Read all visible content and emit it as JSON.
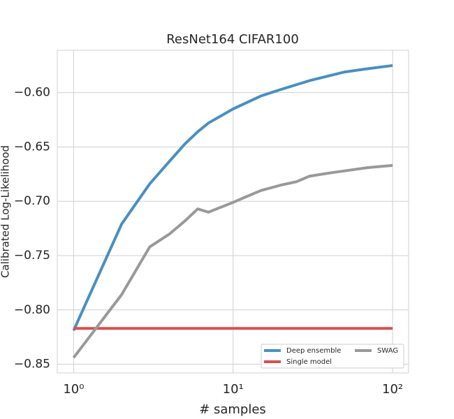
{
  "chart_data": {
    "type": "line",
    "title": "ResNet164 CIFAR100",
    "xlabel": "# samples",
    "ylabel": "Calibrated Log-Likelihood",
    "xscale": "log",
    "grid": true,
    "legend": "lower right",
    "xlim": [
      0.79,
      126
    ],
    "ylim": [
      -0.858,
      -0.561
    ],
    "xticks": [
      {
        "value": 1,
        "label": "10⁰"
      },
      {
        "value": 10,
        "label": "10¹"
      },
      {
        "value": 100,
        "label": "10²"
      }
    ],
    "yticks": [
      {
        "value": -0.85,
        "label": "−0.85"
      },
      {
        "value": -0.8,
        "label": "−0.80"
      },
      {
        "value": -0.75,
        "label": "−0.75"
      },
      {
        "value": -0.7,
        "label": "−0.70"
      },
      {
        "value": -0.65,
        "label": "−0.65"
      },
      {
        "value": -0.6,
        "label": "−0.60"
      }
    ],
    "series": [
      {
        "name": "Deep ensemble",
        "color": "#4a8fc0",
        "x": [
          1,
          2,
          3,
          4,
          5,
          6,
          7,
          10,
          15,
          20,
          30,
          50,
          70,
          100
        ],
        "values": [
          -0.819,
          -0.721,
          -0.684,
          -0.663,
          -0.647,
          -0.636,
          -0.628,
          -0.615,
          -0.603,
          -0.597,
          -0.589,
          -0.581,
          -0.578,
          -0.575
        ]
      },
      {
        "name": "Single model",
        "color": "#d65050",
        "x": [
          1,
          100
        ],
        "values": [
          -0.817,
          -0.817
        ]
      },
      {
        "name": "SWAG",
        "color": "#999999",
        "x": [
          1,
          2,
          3,
          4,
          5,
          6,
          7,
          10,
          12,
          15,
          20,
          25,
          30,
          40,
          50,
          70,
          100
        ],
        "values": [
          -0.844,
          -0.786,
          -0.742,
          -0.73,
          -0.718,
          -0.707,
          -0.71,
          -0.701,
          -0.696,
          -0.69,
          -0.685,
          -0.682,
          -0.677,
          -0.674,
          -0.672,
          -0.669,
          -0.667
        ]
      }
    ]
  }
}
